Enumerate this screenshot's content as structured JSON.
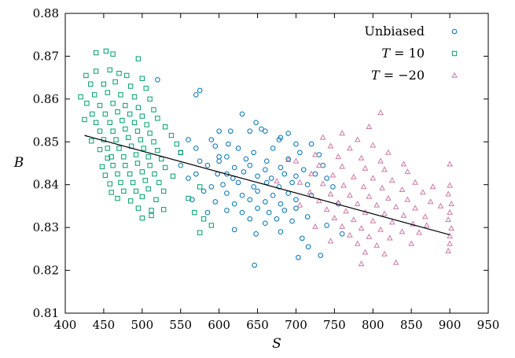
{
  "chart_data": {
    "type": "scatter",
    "xlabel": "S",
    "ylabel": "B",
    "xlim": [
      400,
      950
    ],
    "ylim": [
      0.81,
      0.88
    ],
    "xticks": [
      "400",
      "450",
      "500",
      "550",
      "600",
      "650",
      "700",
      "750",
      "800",
      "850",
      "900",
      "950"
    ],
    "yticks": [
      "0.81",
      "0.82",
      "0.83",
      "0.84",
      "0.85",
      "0.86",
      "0.87",
      "0.88"
    ],
    "grid": false,
    "legend_position": "top-right",
    "series": [
      {
        "name": "Unbiased",
        "marker": "circle",
        "color": "#0072b2",
        "points": [
          [
            520,
            0.8645
          ],
          [
            575,
            0.862
          ],
          [
            570,
            0.861
          ],
          [
            630,
            0.8565
          ],
          [
            648,
            0.8545
          ],
          [
            655,
            0.853
          ],
          [
            600,
            0.8525
          ],
          [
            615,
            0.8525
          ],
          [
            640,
            0.8525
          ],
          [
            660,
            0.8525
          ],
          [
            690,
            0.852
          ],
          [
            700,
            0.8495
          ],
          [
            560,
            0.8505
          ],
          [
            590,
            0.8505
          ],
          [
            680,
            0.851
          ],
          [
            720,
            0.8495
          ],
          [
            550,
            0.8475
          ],
          [
            570,
            0.8485
          ],
          [
            595,
            0.849
          ],
          [
            625,
            0.8485
          ],
          [
            645,
            0.8475
          ],
          [
            670,
            0.8485
          ],
          [
            705,
            0.8475
          ],
          [
            730,
            0.847
          ],
          [
            610,
            0.8465
          ],
          [
            635,
            0.846
          ],
          [
            662,
            0.8455
          ],
          [
            690,
            0.846
          ],
          [
            550,
            0.8445
          ],
          [
            585,
            0.8445
          ],
          [
            600,
            0.8455
          ],
          [
            620,
            0.844
          ],
          [
            640,
            0.8445
          ],
          [
            660,
            0.8435
          ],
          [
            680,
            0.844
          ],
          [
            710,
            0.8435
          ],
          [
            570,
            0.8425
          ],
          [
            598,
            0.8425
          ],
          [
            618,
            0.8415
          ],
          [
            632,
            0.843
          ],
          [
            650,
            0.842
          ],
          [
            668,
            0.8415
          ],
          [
            685,
            0.8425
          ],
          [
            700,
            0.842
          ],
          [
            725,
            0.8425
          ],
          [
            740,
            0.8415
          ],
          [
            605,
            0.84
          ],
          [
            625,
            0.8405
          ],
          [
            645,
            0.8395
          ],
          [
            662,
            0.8405
          ],
          [
            678,
            0.8395
          ],
          [
            695,
            0.8405
          ],
          [
            715,
            0.84
          ],
          [
            580,
            0.8385
          ],
          [
            610,
            0.838
          ],
          [
            630,
            0.8375
          ],
          [
            650,
            0.8385
          ],
          [
            670,
            0.8375
          ],
          [
            690,
            0.838
          ],
          [
            720,
            0.8375
          ],
          [
            595,
            0.836
          ],
          [
            620,
            0.8355
          ],
          [
            640,
            0.8365
          ],
          [
            660,
            0.836
          ],
          [
            680,
            0.8355
          ],
          [
            700,
            0.8365
          ],
          [
            610,
            0.834
          ],
          [
            630,
            0.8335
          ],
          [
            650,
            0.8345
          ],
          [
            665,
            0.8335
          ],
          [
            685,
            0.834
          ],
          [
            640,
            0.832
          ],
          [
            660,
            0.831
          ],
          [
            675,
            0.832
          ],
          [
            695,
            0.8315
          ],
          [
            620,
            0.8295
          ],
          [
            648,
            0.8285
          ],
          [
            680,
            0.829
          ],
          [
            708,
            0.8275
          ],
          [
            716,
            0.8255
          ],
          [
            732,
            0.8235
          ],
          [
            703,
            0.823
          ],
          [
            646,
            0.8212
          ],
          [
            600,
            0.8465
          ],
          [
            612,
            0.8495
          ],
          [
            678,
            0.8505
          ],
          [
            575,
            0.8455
          ],
          [
            560,
            0.8415
          ],
          [
            590,
            0.8395
          ],
          [
            610,
            0.8425
          ],
          [
            735,
            0.8445
          ],
          [
            748,
            0.8395
          ],
          [
            755,
            0.8355
          ],
          [
            565,
            0.8365
          ],
          [
            585,
            0.8335
          ],
          [
            700,
            0.8345
          ],
          [
            715,
            0.8325
          ],
          [
            740,
            0.8305
          ],
          [
            760,
            0.8285
          ]
        ]
      },
      {
        "name": "T = 10",
        "marker": "square",
        "color": "#009e73",
        "points": [
          [
            453,
            0.8712
          ],
          [
            462,
            0.8705
          ],
          [
            440,
            0.8708
          ],
          [
            495,
            0.8694
          ],
          [
            427,
            0.8655
          ],
          [
            440,
            0.8665
          ],
          [
            458,
            0.8668
          ],
          [
            470,
            0.866
          ],
          [
            480,
            0.8655
          ],
          [
            500,
            0.8648
          ],
          [
            433,
            0.8635
          ],
          [
            450,
            0.8635
          ],
          [
            465,
            0.864
          ],
          [
            485,
            0.863
          ],
          [
            505,
            0.8625
          ],
          [
            420,
            0.8605
          ],
          [
            438,
            0.861
          ],
          [
            455,
            0.8615
          ],
          [
            472,
            0.861
          ],
          [
            490,
            0.8605
          ],
          [
            510,
            0.86
          ],
          [
            428,
            0.859
          ],
          [
            445,
            0.8585
          ],
          [
            462,
            0.859
          ],
          [
            478,
            0.8585
          ],
          [
            495,
            0.858
          ],
          [
            515,
            0.8575
          ],
          [
            435,
            0.8565
          ],
          [
            452,
            0.8565
          ],
          [
            468,
            0.857
          ],
          [
            484,
            0.8565
          ],
          [
            500,
            0.856
          ],
          [
            520,
            0.8555
          ],
          [
            440,
            0.8545
          ],
          [
            458,
            0.8545
          ],
          [
            474,
            0.855
          ],
          [
            490,
            0.8545
          ],
          [
            506,
            0.854
          ],
          [
            530,
            0.8535
          ],
          [
            445,
            0.8525
          ],
          [
            462,
            0.8525
          ],
          [
            478,
            0.853
          ],
          [
            494,
            0.8525
          ],
          [
            510,
            0.852
          ],
          [
            538,
            0.8515
          ],
          [
            450,
            0.8505
          ],
          [
            466,
            0.8505
          ],
          [
            482,
            0.851
          ],
          [
            498,
            0.8505
          ],
          [
            515,
            0.85
          ],
          [
            545,
            0.8495
          ],
          [
            455,
            0.8485
          ],
          [
            470,
            0.8485
          ],
          [
            486,
            0.849
          ],
          [
            502,
            0.8485
          ],
          [
            520,
            0.848
          ],
          [
            550,
            0.8475
          ],
          [
            460,
            0.8465
          ],
          [
            476,
            0.8465
          ],
          [
            492,
            0.847
          ],
          [
            508,
            0.8465
          ],
          [
            525,
            0.846
          ],
          [
            462,
            0.8445
          ],
          [
            478,
            0.8445
          ],
          [
            494,
            0.845
          ],
          [
            510,
            0.8445
          ],
          [
            530,
            0.844
          ],
          [
            468,
            0.8425
          ],
          [
            484,
            0.8425
          ],
          [
            500,
            0.843
          ],
          [
            516,
            0.8425
          ],
          [
            540,
            0.842
          ],
          [
            472,
            0.8405
          ],
          [
            488,
            0.8405
          ],
          [
            504,
            0.841
          ],
          [
            522,
            0.8405
          ],
          [
            476,
            0.8385
          ],
          [
            492,
            0.8385
          ],
          [
            508,
            0.839
          ],
          [
            528,
            0.8385
          ],
          [
            468,
            0.8368
          ],
          [
            485,
            0.8362
          ],
          [
            500,
            0.8372
          ],
          [
            518,
            0.8365
          ],
          [
            495,
            0.8345
          ],
          [
            512,
            0.834
          ],
          [
            500,
            0.8322
          ],
          [
            512,
            0.8328
          ],
          [
            528,
            0.8342
          ],
          [
            560,
            0.8368
          ],
          [
            575,
            0.8395
          ],
          [
            568,
            0.8335
          ],
          [
            580,
            0.832
          ],
          [
            590,
            0.8305
          ],
          [
            575,
            0.8288
          ],
          [
            425,
            0.8552
          ],
          [
            434,
            0.8502
          ],
          [
            445,
            0.8482
          ],
          [
            455,
            0.8462
          ],
          [
            448,
            0.8442
          ],
          [
            452,
            0.8422
          ],
          [
            458,
            0.8402
          ],
          [
            460,
            0.8382
          ]
        ]
      },
      {
        "name": "T = −20",
        "marker": "triangle",
        "color": "#cc79a7",
        "points": [
          [
            810,
            0.8568
          ],
          [
            795,
            0.8535
          ],
          [
            760,
            0.852
          ],
          [
            735,
            0.851
          ],
          [
            780,
            0.8505
          ],
          [
            745,
            0.849
          ],
          [
            770,
            0.8485
          ],
          [
            800,
            0.8492
          ],
          [
            820,
            0.8475
          ],
          [
            725,
            0.847
          ],
          [
            755,
            0.8465
          ],
          [
            785,
            0.8462
          ],
          [
            810,
            0.8455
          ],
          [
            840,
            0.8448
          ],
          [
            700,
            0.8455
          ],
          [
            730,
            0.8445
          ],
          [
            760,
            0.8442
          ],
          [
            790,
            0.8438
          ],
          [
            815,
            0.8435
          ],
          [
            845,
            0.843
          ],
          [
            720,
            0.8425
          ],
          [
            748,
            0.8422
          ],
          [
            775,
            0.8418
          ],
          [
            800,
            0.8415
          ],
          [
            825,
            0.841
          ],
          [
            855,
            0.8405
          ],
          [
            705,
            0.8405
          ],
          [
            735,
            0.8402
          ],
          [
            762,
            0.8398
          ],
          [
            788,
            0.8395
          ],
          [
            812,
            0.8392
          ],
          [
            838,
            0.8388
          ],
          [
            865,
            0.8382
          ],
          [
            718,
            0.8382
          ],
          [
            745,
            0.8378
          ],
          [
            770,
            0.8375
          ],
          [
            795,
            0.8372
          ],
          [
            820,
            0.8368
          ],
          [
            845,
            0.8365
          ],
          [
            875,
            0.836
          ],
          [
            730,
            0.8362
          ],
          [
            755,
            0.8358
          ],
          [
            780,
            0.8355
          ],
          [
            805,
            0.8352
          ],
          [
            830,
            0.8348
          ],
          [
            855,
            0.8345
          ],
          [
            740,
            0.8342
          ],
          [
            765,
            0.8338
          ],
          [
            790,
            0.8335
          ],
          [
            815,
            0.8332
          ],
          [
            840,
            0.8328
          ],
          [
            868,
            0.8325
          ],
          [
            750,
            0.8322
          ],
          [
            775,
            0.8318
          ],
          [
            800,
            0.8315
          ],
          [
            825,
            0.8312
          ],
          [
            852,
            0.8308
          ],
          [
            760,
            0.8302
          ],
          [
            785,
            0.8298
          ],
          [
            810,
            0.8295
          ],
          [
            838,
            0.829
          ],
          [
            770,
            0.8282
          ],
          [
            795,
            0.8278
          ],
          [
            822,
            0.8275
          ],
          [
            780,
            0.8262
          ],
          [
            805,
            0.8258
          ],
          [
            790,
            0.8242
          ],
          [
            815,
            0.8238
          ],
          [
            785,
            0.8215
          ],
          [
            830,
            0.8218
          ],
          [
            900,
            0.8448
          ],
          [
            900,
            0.8398
          ],
          [
            898,
            0.8378
          ],
          [
            902,
            0.8355
          ],
          [
            900,
            0.8335
          ],
          [
            898,
            0.8318
          ],
          [
            902,
            0.8298
          ],
          [
            900,
            0.828
          ],
          [
            900,
            0.8262
          ],
          [
            898,
            0.8245
          ],
          [
            888,
            0.835
          ],
          [
            878,
            0.8395
          ],
          [
            690,
            0.8458
          ],
          [
            675,
            0.8408
          ],
          [
            705,
            0.8352
          ],
          [
            725,
            0.8302
          ],
          [
            745,
            0.8268
          ],
          [
            860,
            0.8288
          ],
          [
            870,
            0.8305
          ],
          [
            850,
            0.8262
          ]
        ]
      }
    ],
    "fit_line": {
      "x": [
        425,
        900
      ],
      "y": [
        0.8515,
        0.8283
      ]
    }
  }
}
